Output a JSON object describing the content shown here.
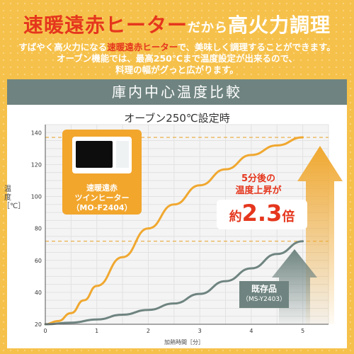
{
  "header": {
    "headline_red": "速暖遠赤ヒーター",
    "headline_small": "だから",
    "headline_white": "高火力調理",
    "desc_line1_pre": "すばやく高火力になる",
    "desc_line1_red": "速暖遠赤ヒーター",
    "desc_line1_post": "で、美味しく調理することができます。",
    "desc_line2": "オーブン機能では、最高250℃まで温度設定が出来るので、",
    "desc_line3": "料理の幅がグっと広がります。"
  },
  "card": {
    "title": "庫内中心温度比較",
    "condition": "オーブン250℃設定時"
  },
  "product": {
    "name_line1": "速暖遠赤",
    "name_line2": "ツインヒーター",
    "model": "（MO-F2404）"
  },
  "annotation": {
    "line1": "5分後の",
    "line2": "温度上昇が",
    "ratio_prefix": "約",
    "ratio_value": "2.3",
    "ratio_suffix": "倍"
  },
  "existing": {
    "label": "既存品",
    "model": "（MS-Y2403）"
  },
  "colors": {
    "new_series": "#f0a830",
    "old_series": "#6f8480",
    "accent": "#e5361d"
  },
  "chart_data": {
    "type": "line",
    "xlabel": "加熱時間［分］",
    "ylabel": "温度［℃］",
    "xlim": [
      0,
      5.5
    ],
    "ylim": [
      20,
      145
    ],
    "x_ticks": [
      0,
      1,
      2,
      3,
      4,
      5
    ],
    "y_ticks": [
      20,
      40,
      60,
      80,
      100,
      120,
      140
    ],
    "grid": true,
    "reference_lines": [
      137,
      72
    ],
    "series": [
      {
        "x": [
          0,
          0.25,
          0.5,
          0.75,
          1,
          1.5,
          2,
          2.5,
          3,
          3.5,
          4,
          4.5,
          5
        ],
        "y": [
          20,
          22,
          27,
          35,
          44,
          62,
          80,
          95,
          107,
          117,
          126,
          132,
          137
        ]
      },
      {
        "x": [
          0,
          0.5,
          1,
          1.5,
          2,
          2.5,
          3,
          3.5,
          4,
          4.5,
          5
        ],
        "y": [
          20,
          21,
          23,
          26,
          29,
          33,
          39,
          47,
          55,
          64,
          72
        ]
      }
    ]
  }
}
